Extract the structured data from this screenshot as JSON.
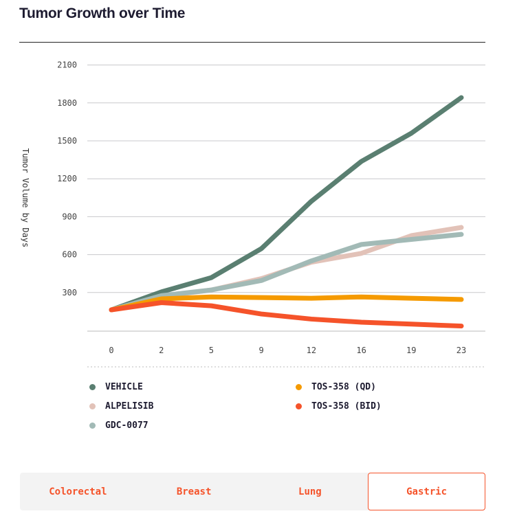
{
  "chart_data": {
    "type": "line",
    "title": "Tumor Growth over Time",
    "xlabel": "",
    "ylabel": "Tumor Volume by Days",
    "categories": [
      "0",
      "2",
      "5",
      "9",
      "12",
      "16",
      "19",
      "23"
    ],
    "yticks": [
      300,
      600,
      900,
      1200,
      1500,
      1800,
      2100
    ],
    "ylim": [
      0,
      2100
    ],
    "grid": true,
    "legend_position": "bottom",
    "series": [
      {
        "name": "VEHICLE",
        "color": "#5a7f71",
        "values": [
          163,
          305,
          418,
          647,
          1022,
          1337,
          1560,
          1842
        ]
      },
      {
        "name": "ALPELISIB",
        "color": "#e2c2b8",
        "values": [
          163,
          270,
          320,
          410,
          540,
          610,
          750,
          815
        ]
      },
      {
        "name": "GDC-0077",
        "color": "#a2bab6",
        "values": [
          163,
          275,
          320,
          395,
          550,
          680,
          720,
          760
        ]
      },
      {
        "name": "TOS-358 (QD)",
        "color": "#f59a00",
        "values": [
          163,
          250,
          265,
          260,
          255,
          265,
          255,
          245
        ]
      },
      {
        "name": "TOS-358 (BID)",
        "color": "#f5532a",
        "values": [
          163,
          220,
          195,
          130,
          90,
          65,
          50,
          35
        ]
      }
    ]
  },
  "tabs": [
    {
      "label": "Colorectal",
      "active": false
    },
    {
      "label": "Breast",
      "active": false
    },
    {
      "label": "Lung",
      "active": false
    },
    {
      "label": "Gastric",
      "active": true
    }
  ]
}
